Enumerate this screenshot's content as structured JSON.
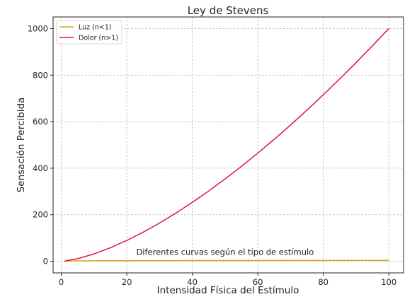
{
  "chart_data": {
    "type": "line",
    "title": "Ley de Stevens",
    "xlabel": "Intensidad Física del Estímulo",
    "ylabel": "Sensación Percibida",
    "xlim": [
      -2.5,
      104.5
    ],
    "ylim": [
      -50,
      1050
    ],
    "xticks": [
      0,
      20,
      40,
      60,
      80,
      100
    ],
    "yticks": [
      0,
      200,
      400,
      600,
      800,
      1000
    ],
    "grid": true,
    "legend_position": "upper-left",
    "series": [
      {
        "name": "Luz (n<1)",
        "color": "#DAA520",
        "x": [
          1,
          5,
          10,
          15,
          20,
          25,
          30,
          35,
          40,
          45,
          50,
          55,
          60,
          65,
          70,
          75,
          80,
          85,
          90,
          95,
          100
        ],
        "y": [
          1.0,
          1.62,
          2.0,
          2.25,
          2.46,
          2.63,
          2.77,
          2.9,
          3.02,
          3.13,
          3.23,
          3.32,
          3.41,
          3.49,
          3.57,
          3.64,
          3.72,
          3.78,
          3.85,
          3.91,
          3.98
        ]
      },
      {
        "name": "Dolor (n>1)",
        "color": "#DC143C",
        "x": [
          1,
          5,
          10,
          15,
          20,
          25,
          30,
          35,
          40,
          45,
          50,
          55,
          60,
          65,
          70,
          75,
          80,
          85,
          90,
          95,
          100
        ],
        "y": [
          1.0,
          11.2,
          31.6,
          58.1,
          89.4,
          125.0,
          164.3,
          207.1,
          253.0,
          301.9,
          353.6,
          407.9,
          464.8,
          524.0,
          585.7,
          649.5,
          715.5,
          783.7,
          853.8,
          926.0,
          1000.0
        ]
      }
    ],
    "annotations": [
      {
        "text": "Diferentes curvas según el tipo de estímulo",
        "x": 50,
        "y": 15
      }
    ]
  }
}
